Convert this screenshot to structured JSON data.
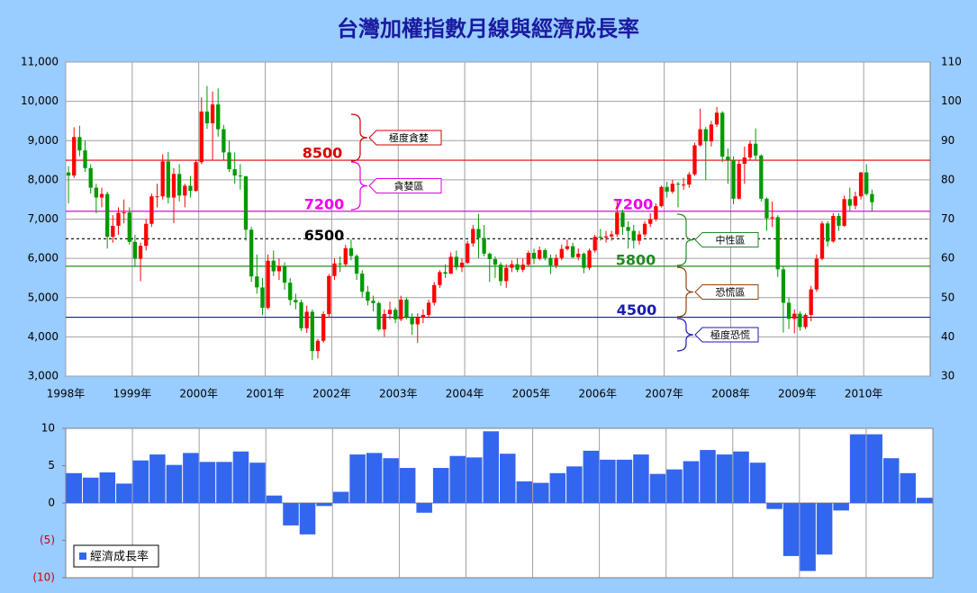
{
  "chart_data": [
    {
      "type": "candlestick",
      "title": "台灣加權指數月線與經濟成長率",
      "open": [
        8187,
        8110,
        9090,
        8750,
        8300,
        7800,
        7550,
        7640,
        6550,
        6830,
        7160,
        7170,
        6420,
        5990,
        6320,
        6880,
        7580,
        7580,
        8470,
        7550,
        8150,
        7600,
        7850,
        7720,
        8450,
        9740,
        9440,
        9920,
        9290,
        8700,
        8270,
        8110,
        8090,
        6730,
        5540,
        5260,
        4740,
        5940,
        5670,
        5800,
        5380,
        4940,
        4880,
        4220,
        4640,
        3640,
        3900,
        4580,
        5550,
        5870,
        5850,
        6260,
        6060,
        5610,
        5150,
        4920,
        4860,
        4190,
        4580,
        4690,
        4450,
        4950,
        4510,
        4320,
        4500,
        4560,
        4870,
        5320,
        5650,
        5610,
        6040,
        5770,
        5890,
        6380,
        6750,
        6520,
        6120,
        5980,
        5840,
        5420,
        5760,
        5850,
        5710,
        5840,
        6140,
        5990,
        6210,
        6010,
        5820,
        6010,
        6240,
        6310,
        6030,
        6120,
        5760,
        6200,
        6550,
        6530,
        6560,
        6610,
        7170,
        6800,
        6700,
        6450,
        6610,
        6880,
        7000,
        7330,
        7820,
        7700,
        7900,
        7880,
        7880,
        8140,
        8880,
        9290,
        8980,
        9410,
        9710,
        8590,
        8510,
        7520,
        8410,
        8570,
        8920,
        8620,
        7520,
        7020,
        7050,
        5720,
        4870,
        4460,
        4590,
        4250,
        4560,
        5210,
        5990,
        6890,
        6430,
        7080,
        6830,
        7510,
        7340,
        7580,
        8190,
        7640
      ],
      "high": [
        8350,
        9340,
        9380,
        9000,
        8400,
        7900,
        7800,
        7700,
        7100,
        7300,
        7500,
        7300,
        6600,
        6400,
        7000,
        7650,
        7900,
        8650,
        8710,
        8300,
        8400,
        7900,
        8100,
        8500,
        10100,
        10390,
        10250,
        10330,
        9400,
        9000,
        8700,
        8400,
        8100,
        6800,
        6100,
        5500,
        6100,
        6200,
        6000,
        5900,
        5500,
        5100,
        4950,
        4800,
        4700,
        3950,
        4650,
        5600,
        6000,
        6050,
        6350,
        6480,
        6100,
        5700,
        5300,
        5050,
        4900,
        4700,
        4900,
        4750,
        5050,
        5000,
        4600,
        4600,
        4700,
        4950,
        5400,
        5700,
        5850,
        6150,
        6200,
        6000,
        6450,
        6850,
        7135,
        6850,
        6150,
        6050,
        5900,
        5850,
        5950,
        6000,
        6000,
        6200,
        6250,
        6300,
        6250,
        6100,
        6100,
        6350,
        6480,
        6400,
        6250,
        6150,
        6250,
        6600,
        6750,
        6700,
        6700,
        7480,
        7240,
        6950,
        6850,
        6700,
        6950,
        7150,
        7400,
        7850,
        7950,
        8000,
        7950,
        8050,
        8200,
        8950,
        9810,
        9350,
        9500,
        9860,
        9750,
        8800,
        8600,
        8500,
        8850,
        9000,
        9310,
        8650,
        7550,
        7450,
        7100,
        5800,
        5000,
        4700,
        4650,
        4600,
        5300,
        6100,
        6950,
        6950,
        7150,
        7150,
        7600,
        7800,
        7700,
        8200,
        8400,
        7750
      ],
      "low": [
        7400,
        8050,
        8600,
        8200,
        7650,
        7150,
        7300,
        6250,
        6400,
        6600,
        6900,
        6350,
        5800,
        5420,
        6200,
        6800,
        7300,
        7500,
        7400,
        6900,
        7450,
        7300,
        7550,
        7700,
        8400,
        9300,
        8500,
        9100,
        8500,
        8200,
        7900,
        7750,
        6450,
        5400,
        5100,
        4550,
        4700,
        5550,
        5450,
        5200,
        4800,
        4700,
        4150,
        4100,
        3410,
        3450,
        3850,
        4500,
        5450,
        5650,
        5800,
        5950,
        5450,
        5000,
        4800,
        4650,
        4150,
        4000,
        4450,
        4350,
        4400,
        4450,
        4050,
        3850,
        4350,
        4500,
        4800,
        5250,
        5500,
        5600,
        5700,
        5650,
        5850,
        6300,
        6000,
        6050,
        5400,
        5500,
        5300,
        5250,
        5650,
        5650,
        5650,
        5800,
        5850,
        5950,
        5950,
        5600,
        5750,
        5950,
        6200,
        6000,
        5950,
        5620,
        5700,
        6150,
        6450,
        6400,
        6450,
        6550,
        6600,
        6250,
        6250,
        6350,
        6550,
        6800,
        6950,
        7300,
        7550,
        7650,
        7300,
        7750,
        7800,
        8100,
        8850,
        8000,
        8850,
        9350,
        8450,
        7900,
        7380,
        7500,
        7900,
        8500,
        8500,
        7450,
        6700,
        6800,
        5530,
        4110,
        4200,
        4090,
        4160,
        4200,
        4400,
        5150,
        5950,
        6300,
        6400,
        6700,
        6800,
        7200,
        7250,
        7500,
        7600,
        7200
      ],
      "close": [
        8110,
        9090,
        8750,
        8300,
        7800,
        7550,
        7640,
        6550,
        6830,
        7160,
        7170,
        6420,
        5990,
        6320,
        6880,
        7580,
        7580,
        8470,
        7550,
        8150,
        7600,
        7850,
        7720,
        8450,
        9740,
        9440,
        9920,
        9290,
        8700,
        8270,
        8110,
        8090,
        6730,
        5540,
        5260,
        4740,
        5940,
        5670,
        5800,
        5380,
        4940,
        4880,
        4220,
        4640,
        3640,
        3900,
        4580,
        5550,
        5870,
        5850,
        6260,
        6060,
        5610,
        5150,
        4920,
        4860,
        4190,
        4580,
        4690,
        4450,
        4950,
        4510,
        4320,
        4500,
        4560,
        4870,
        5320,
        5650,
        5610,
        6040,
        5770,
        5890,
        6380,
        6750,
        6520,
        6120,
        5980,
        5840,
        5420,
        5760,
        5850,
        5710,
        5840,
        6140,
        5990,
        6210,
        6010,
        5820,
        6010,
        6240,
        6310,
        6030,
        6120,
        5760,
        6200,
        6550,
        6530,
        6560,
        6610,
        7170,
        6800,
        6700,
        6450,
        6610,
        6880,
        7000,
        7330,
        7820,
        7700,
        7900,
        7880,
        7880,
        8140,
        8880,
        9290,
        8980,
        9410,
        9710,
        8590,
        8510,
        7520,
        8410,
        8570,
        8920,
        8620,
        7520,
        7020,
        7050,
        5720,
        4870,
        4460,
        4590,
        4250,
        4560,
        5210,
        5990,
        6890,
        6430,
        7080,
        6830,
        7510,
        7340,
        7580,
        8190,
        7640,
        7430
      ],
      "up_color": "#ff0000",
      "down_color": "#009900",
      "xlim": [
        1998,
        2011
      ],
      "xticks": [
        {
          "value": 1998,
          "label": "1998年"
        },
        {
          "value": 1999,
          "label": "1999年"
        },
        {
          "value": 2000,
          "label": "2000年"
        },
        {
          "value": 2001,
          "label": "2001年"
        },
        {
          "value": 2002,
          "label": "2002年"
        },
        {
          "value": 2003,
          "label": "2003年"
        },
        {
          "value": 2004,
          "label": "2004年"
        },
        {
          "value": 2005,
          "label": "2005年"
        },
        {
          "value": 2006,
          "label": "2006年"
        },
        {
          "value": 2007,
          "label": "2007年"
        },
        {
          "value": 2008,
          "label": "2008年"
        },
        {
          "value": 2009,
          "label": "2009年"
        },
        {
          "value": 2010,
          "label": "2010年"
        }
      ],
      "ylim": [
        3000,
        11000
      ],
      "yticks": [
        {
          "value": 3000,
          "label": "3,000"
        },
        {
          "value": 4000,
          "label": "4,000"
        },
        {
          "value": 5000,
          "label": "5,000"
        },
        {
          "value": 6000,
          "label": "6,000"
        },
        {
          "value": 7000,
          "label": "7,000"
        },
        {
          "value": 8000,
          "label": "8,000"
        },
        {
          "value": 9000,
          "label": "9,000"
        },
        {
          "value": 10000,
          "label": "10,000"
        },
        {
          "value": 11000,
          "label": "11,000"
        }
      ],
      "y2lim": [
        30,
        110
      ],
      "y2ticks": [
        30,
        40,
        50,
        60,
        70,
        80,
        90,
        100,
        110
      ],
      "grid": true,
      "ref_lines": [
        {
          "value": 8500,
          "color": "#dd0000"
        },
        {
          "value": 7200,
          "color": "#ee00ee"
        },
        {
          "value": 6500,
          "color": "#000000",
          "dashed": true
        },
        {
          "value": 5800,
          "color": "#228b22"
        },
        {
          "value": 4500,
          "color": "#1a1ab0"
        }
      ],
      "zones": [
        {
          "label": "極度貪婪",
          "color": "#cc0000"
        },
        {
          "label": "貪婪區",
          "color": "#dd00dd"
        },
        {
          "label": "中性區",
          "color": "#228b22"
        },
        {
          "label": "恐慌區",
          "color": "#8b4513"
        },
        {
          "label": "極度恐慌",
          "color": "#1a1ab0"
        }
      ]
    },
    {
      "type": "bar",
      "series": [
        {
          "name": "經濟成長率",
          "color": "#3366ee",
          "values": [
            4.0,
            3.4,
            4.1,
            2.6,
            5.7,
            6.5,
            5.1,
            6.7,
            5.5,
            5.5,
            6.9,
            5.4,
            1.0,
            -3.0,
            -4.2,
            -0.4,
            1.5,
            6.5,
            6.7,
            6.0,
            4.7,
            -1.3,
            4.7,
            6.3,
            6.1,
            9.6,
            6.6,
            2.9,
            2.7,
            4.0,
            4.9,
            7.0,
            5.8,
            5.8,
            6.5,
            3.9,
            4.5,
            5.6,
            7.1,
            6.5,
            6.9,
            5.4,
            -0.8,
            -7.1,
            -9.1,
            -6.9,
            -1.0,
            9.2,
            9.2,
            6.0,
            4.0,
            0.7
          ]
        }
      ],
      "xlim": [
        1998,
        2011
      ],
      "ylim": [
        -10,
        10
      ],
      "yticks": [
        10,
        5,
        0,
        {
          "value": -5,
          "label": "(5)"
        },
        {
          "value": -10,
          "label": "(10)"
        }
      ],
      "negative_tick_color": "#cc0000",
      "grid": true,
      "legend": "lower left"
    }
  ]
}
